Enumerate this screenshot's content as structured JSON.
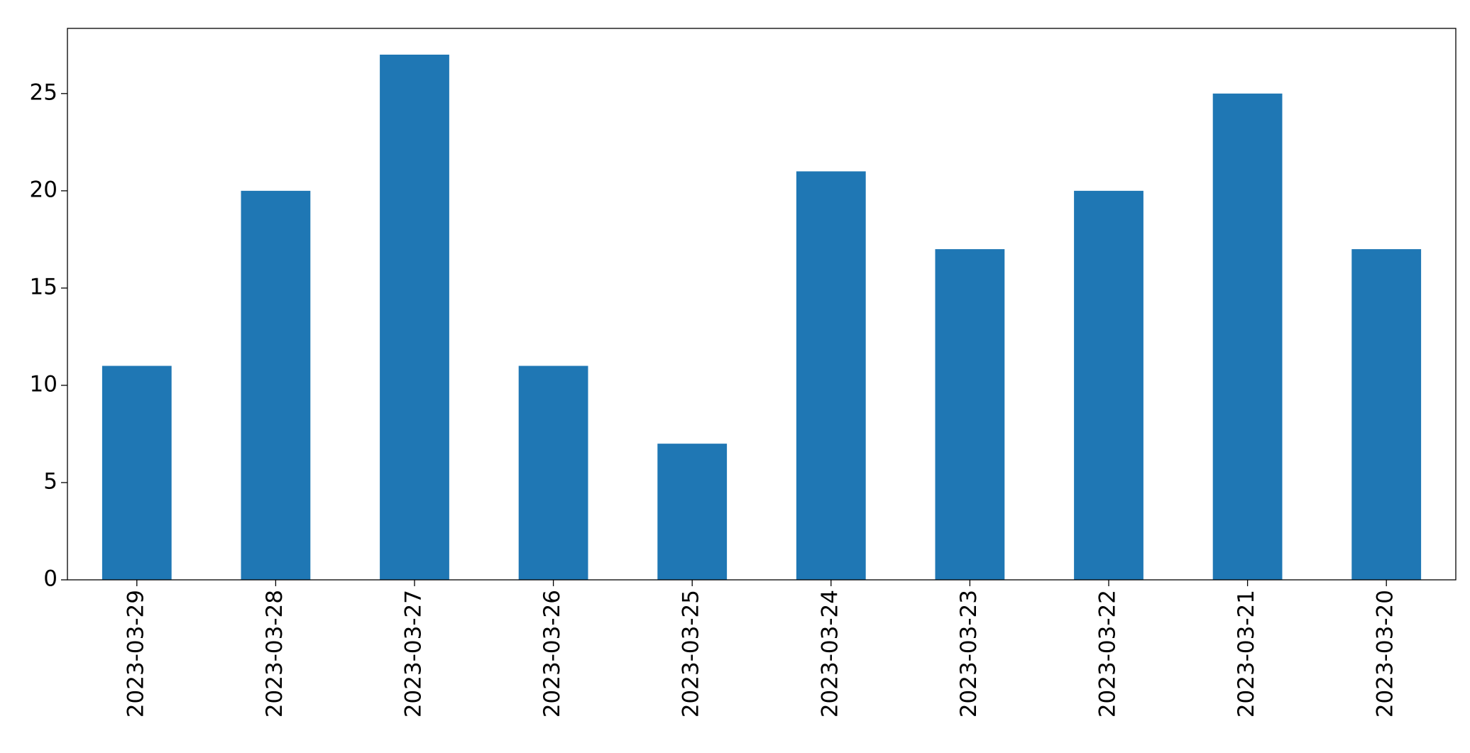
{
  "chart_data": {
    "type": "bar",
    "categories": [
      "2023-03-29",
      "2023-03-28",
      "2023-03-27",
      "2023-03-26",
      "2023-03-25",
      "2023-03-24",
      "2023-03-23",
      "2023-03-22",
      "2023-03-21",
      "2023-03-20"
    ],
    "values": [
      11,
      20,
      27,
      11,
      7,
      21,
      17,
      20,
      25,
      17
    ],
    "color": "#1f77b4",
    "ylim": [
      0,
      28.35
    ],
    "yticks": [
      0,
      5,
      10,
      15,
      20,
      25
    ],
    "grid": false
  }
}
